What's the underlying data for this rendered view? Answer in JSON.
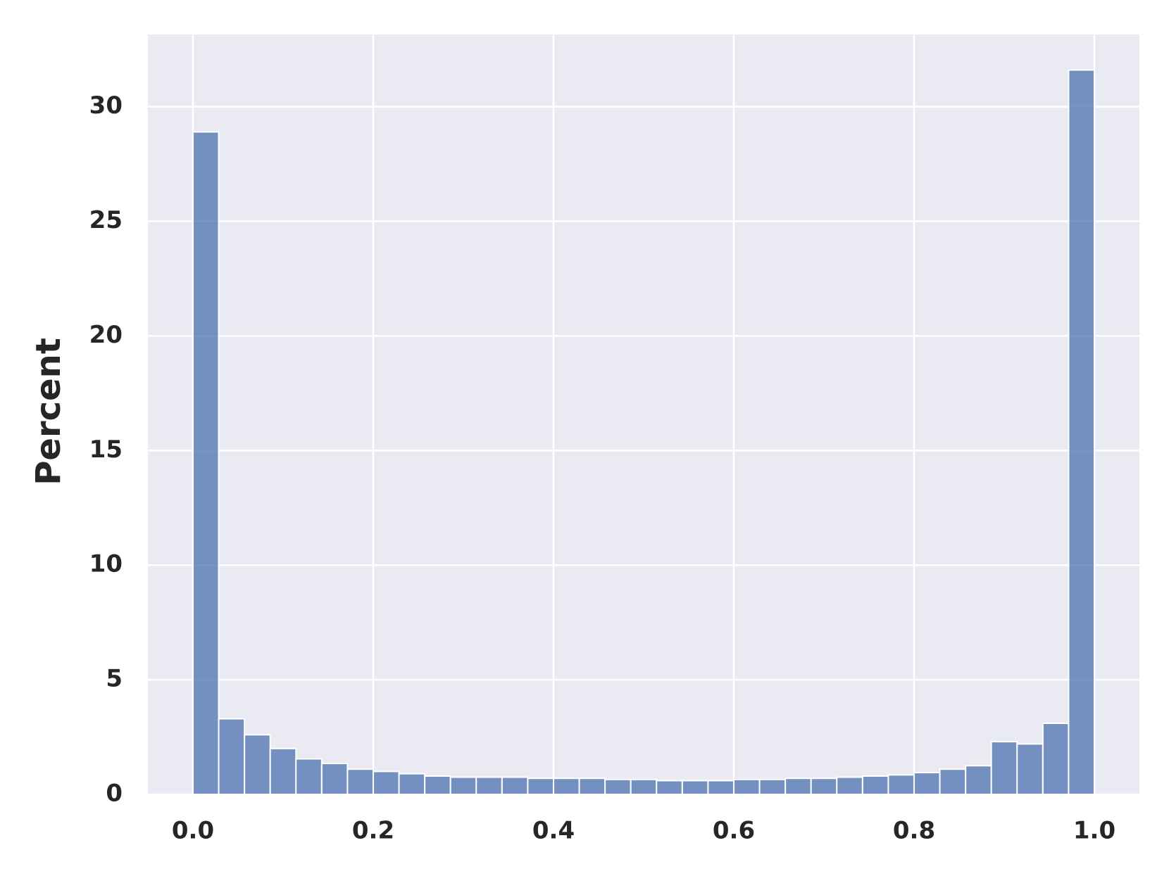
{
  "chart_data": {
    "type": "histogram",
    "ylabel": "Percent",
    "bins": [
      0,
      0.028571,
      0.057143,
      0.085714,
      0.114286,
      0.142857,
      0.171429,
      0.2,
      0.228571,
      0.257143,
      0.285714,
      0.314286,
      0.342857,
      0.371429,
      0.4,
      0.428571,
      0.457143,
      0.485714,
      0.514286,
      0.542857,
      0.571429,
      0.6,
      0.628571,
      0.657143,
      0.685714,
      0.714286,
      0.742857,
      0.771429,
      0.8,
      0.828571,
      0.857143,
      0.885714,
      0.914286,
      0.942857,
      0.971429,
      1
    ],
    "values": [
      28.9,
      3.3,
      2.6,
      2.0,
      1.55,
      1.35,
      1.1,
      1.0,
      0.9,
      0.8,
      0.75,
      0.75,
      0.75,
      0.7,
      0.7,
      0.7,
      0.65,
      0.65,
      0.6,
      0.6,
      0.6,
      0.65,
      0.65,
      0.7,
      0.7,
      0.75,
      0.8,
      0.85,
      0.95,
      1.1,
      1.25,
      2.3,
      2.2,
      3.1,
      31.6
    ],
    "color": "#4c72b0",
    "xlim": [
      -0.05,
      1.05
    ],
    "xticks": [
      {
        "value": 0,
        "label": "0.0"
      },
      {
        "value": 0.2,
        "label": "0.2"
      },
      {
        "value": 0.4,
        "label": "0.4"
      },
      {
        "value": 0.6,
        "label": "0.6"
      },
      {
        "value": 0.8,
        "label": "0.8"
      },
      {
        "value": 1,
        "label": "1.0"
      }
    ],
    "ylim": [
      0,
      33.15
    ],
    "yticks": [
      0,
      5,
      10,
      15,
      20,
      25,
      30
    ],
    "grid": true
  }
}
